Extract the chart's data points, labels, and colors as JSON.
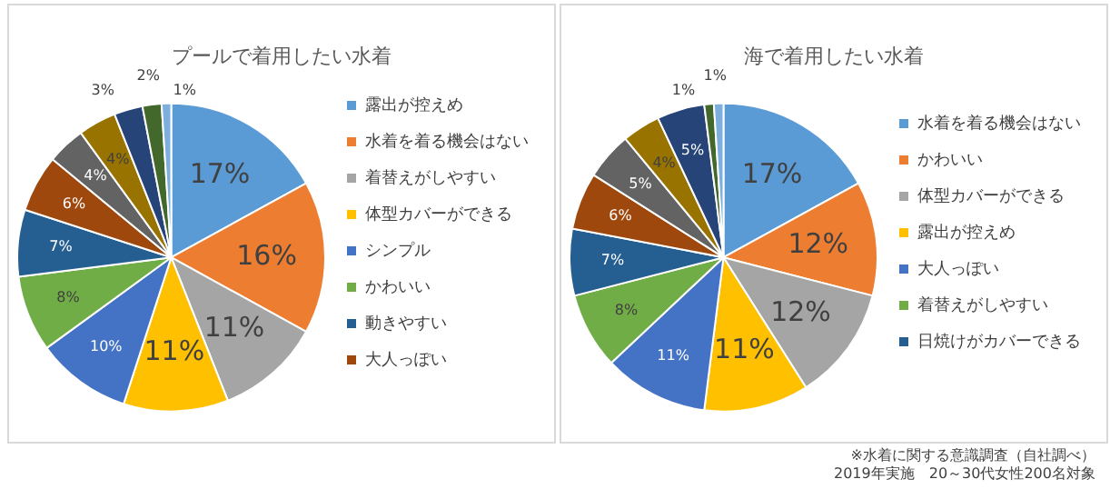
{
  "chart_data": [
    {
      "type": "pie",
      "title": "プールで着用したい水着",
      "categories": [
        "露出が控えめ",
        "水着を着る機会はない",
        "着替えがしやすい",
        "体型カバーができる",
        "シンプル",
        "かわいい",
        "動きやすい",
        "大人っぽい",
        null,
        null,
        null,
        null,
        null
      ],
      "values": [
        17,
        16,
        11,
        11,
        10,
        8,
        7,
        6,
        4,
        4,
        3,
        2,
        1
      ],
      "colors": [
        "#5b9bd5",
        "#ed7d31",
        "#a5a5a5",
        "#ffc000",
        "#4472c4",
        "#70ad47",
        "#255e91",
        "#9e480e",
        "#636363",
        "#997300",
        "#264478",
        "#43682b",
        "#7cafdd"
      ],
      "value_labels": [
        "17%",
        "16%",
        "11%",
        "11%",
        "10%",
        "8%",
        "7%",
        "6%",
        "4%",
        "4%",
        "3%",
        "2%",
        "1%"
      ],
      "legend": "right"
    },
    {
      "type": "pie",
      "title": "海で着用したい水着",
      "categories": [
        "水着を着る機会はない",
        "かわいい",
        "体型カバーができる",
        "露出が控えめ",
        "大人っぽい",
        "着替えがしやすい",
        "日焼けがカバーできる",
        null,
        null,
        null,
        null,
        null,
        null
      ],
      "values": [
        17,
        12,
        12,
        11,
        11,
        8,
        7,
        6,
        5,
        4,
        5,
        1,
        1
      ],
      "colors": [
        "#5b9bd5",
        "#ed7d31",
        "#a5a5a5",
        "#ffc000",
        "#4472c4",
        "#70ad47",
        "#255e91",
        "#9e480e",
        "#636363",
        "#997300",
        "#264478",
        "#43682b",
        "#7cafdd"
      ],
      "value_labels": [
        "17%",
        "12%",
        "12%",
        "11%",
        "11%",
        "8%",
        "7%",
        "6%",
        "5%",
        "4%",
        "5%",
        "1%",
        "1%"
      ],
      "legend": "right",
      "annotations": [
        "※水着に関する意識調査（自社調べ）",
        "2019年実施　20～30代女性200名対象"
      ]
    }
  ]
}
